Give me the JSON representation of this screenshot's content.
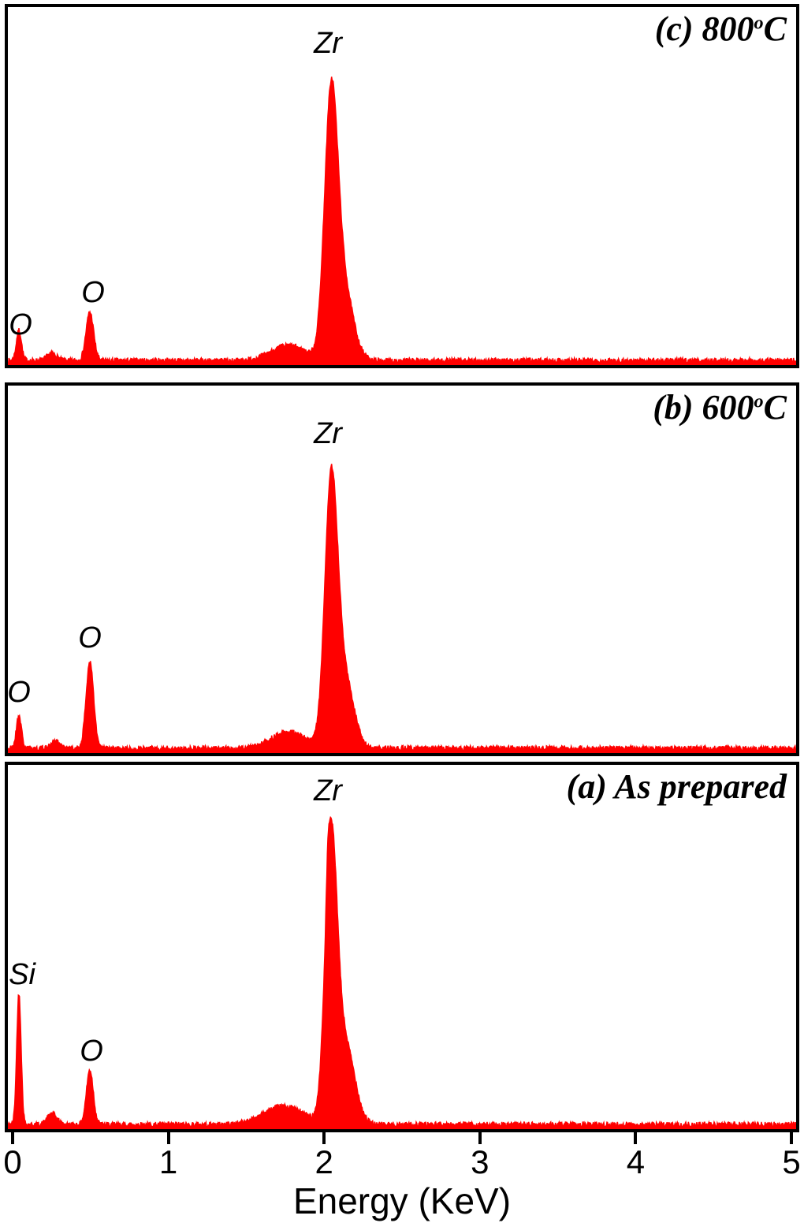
{
  "figure": {
    "xlabel": "Energy (KeV)",
    "x_ticks": [
      "0",
      "1",
      "2",
      "3",
      "4",
      "5"
    ],
    "accent_color": "#ff0000",
    "border_color": "#000000"
  },
  "chart_data": [
    {
      "type": "area",
      "panel_label": "(c) 800°C",
      "title": {
        "pre": "(c) 800",
        "sup": "o",
        "post": "C"
      },
      "xlabel": "Energy (KeV)",
      "xlim": [
        0,
        5
      ],
      "grid": false,
      "legend": "none",
      "color": "#ff0000",
      "baseline": 0.006,
      "noise": 0.014,
      "seed": 7,
      "peaks": [
        {
          "c": 0.07,
          "h": 0.085,
          "s": 0.016
        },
        {
          "c": 0.28,
          "h": 0.02,
          "s": 0.03
        },
        {
          "c": 0.52,
          "h": 0.135,
          "s": 0.024
        },
        {
          "c": 1.78,
          "h": 0.042,
          "s": 0.11
        },
        {
          "c": 2.05,
          "h": 0.7,
          "s": 0.042
        },
        {
          "c": 2.13,
          "h": 0.2,
          "s": 0.06
        }
      ],
      "annotations": [
        {
          "text": "Zr",
          "x": 2.03,
          "y": 0.06
        },
        {
          "text": "O",
          "x": 0.54,
          "y": 0.755
        },
        {
          "text": "O",
          "x": 0.08,
          "y": 0.845
        }
      ]
    },
    {
      "type": "area",
      "panel_label": "(b) 600°C",
      "title": {
        "pre": "(b) 600",
        "sup": "o",
        "post": "C"
      },
      "xlabel": "Energy (KeV)",
      "xlim": [
        0,
        5
      ],
      "grid": false,
      "legend": "none",
      "color": "#ff0000",
      "baseline": 0.006,
      "noise": 0.014,
      "seed": 21,
      "peaks": [
        {
          "c": 0.07,
          "h": 0.09,
          "s": 0.016
        },
        {
          "c": 0.3,
          "h": 0.02,
          "s": 0.03
        },
        {
          "c": 0.52,
          "h": 0.235,
          "s": 0.024
        },
        {
          "c": 1.78,
          "h": 0.045,
          "s": 0.11
        },
        {
          "c": 2.05,
          "h": 0.68,
          "s": 0.04
        },
        {
          "c": 2.13,
          "h": 0.2,
          "s": 0.06
        }
      ],
      "annotations": [
        {
          "text": "Zr",
          "x": 2.03,
          "y": 0.09
        },
        {
          "text": "O",
          "x": 0.52,
          "y": 0.645
        },
        {
          "text": "O",
          "x": 0.07,
          "y": 0.795
        }
      ]
    },
    {
      "type": "area",
      "panel_label": "(a) As prepared",
      "title": {
        "pre": "(a) As prepared",
        "sup": "",
        "post": ""
      },
      "xlabel": "Energy (KeV)",
      "xlim": [
        0,
        5
      ],
      "grid": false,
      "legend": "none",
      "color": "#ff0000",
      "baseline": 0.006,
      "noise": 0.014,
      "seed": 42,
      "peaks": [
        {
          "c": 0.07,
          "h": 0.36,
          "s": 0.014
        },
        {
          "c": 0.28,
          "h": 0.03,
          "s": 0.03
        },
        {
          "c": 0.52,
          "h": 0.15,
          "s": 0.022
        },
        {
          "c": 1.75,
          "h": 0.05,
          "s": 0.13
        },
        {
          "c": 2.03,
          "h": 0.08,
          "s": 0.01
        },
        {
          "c": 2.05,
          "h": 0.75,
          "s": 0.038
        },
        {
          "c": 2.14,
          "h": 0.22,
          "s": 0.06
        }
      ],
      "annotations": [
        {
          "text": "Zr",
          "x": 2.03,
          "y": 0.03
        },
        {
          "text": "Si",
          "x": 0.09,
          "y": 0.535
        },
        {
          "text": "O",
          "x": 0.53,
          "y": 0.745
        }
      ]
    }
  ]
}
